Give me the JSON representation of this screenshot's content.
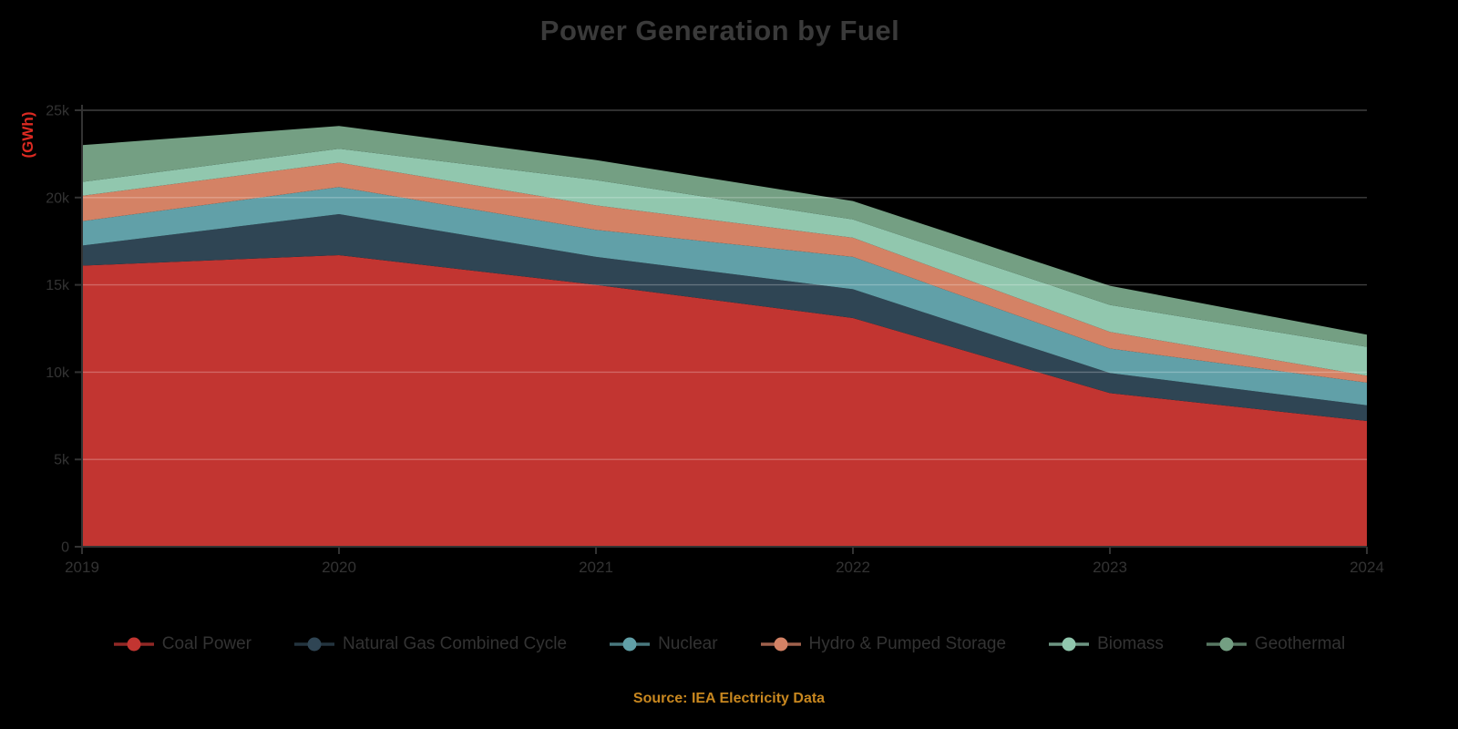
{
  "title": "Power Generation by Fuel",
  "y_axis": {
    "name": "(GWh)",
    "tick_labels": [
      "0",
      "5k",
      "10k",
      "15k",
      "20k",
      "25k"
    ]
  },
  "footer": {
    "source_caption": "Source: IEA Electricity Data"
  },
  "colors": {
    "background": "#000000",
    "title_text": "#3a3a3a",
    "axis_text": "#333333",
    "axis_line": "#333333",
    "y_axis_name": "#dc2a22",
    "caption": "#c8871f",
    "gridline": "rgba(255,255,255,0.25)"
  },
  "chart_data": {
    "type": "area",
    "stacked": true,
    "title": "Power Generation by Fuel",
    "xlabel": "",
    "ylabel": "(GWh)",
    "x": [
      "2019",
      "2020",
      "2021",
      "2022",
      "2023",
      "2024"
    ],
    "ylim": [
      0,
      25000
    ],
    "ytick_step": 5000,
    "grid": true,
    "legend_position": "bottom",
    "series": [
      {
        "name": "Coal Power",
        "color": "#c23531",
        "values": [
          16100,
          16700,
          15000,
          13100,
          8800,
          7200
        ]
      },
      {
        "name": "Natural Gas Combined Cycle",
        "color": "#2f4554",
        "values": [
          1150,
          2350,
          1600,
          1650,
          1150,
          900
        ]
      },
      {
        "name": "Nuclear",
        "color": "#61a0a8",
        "values": [
          1400,
          1550,
          1550,
          1850,
          1400,
          1300
        ]
      },
      {
        "name": "Hydro & Pumped Storage",
        "color": "#d48265",
        "values": [
          1450,
          1400,
          1400,
          1100,
          950,
          400
        ]
      },
      {
        "name": "Biomass",
        "color": "#91c7ae",
        "values": [
          800,
          800,
          1450,
          1050,
          1550,
          1650
        ]
      },
      {
        "name": "Geothermal",
        "color": "#749f83",
        "values": [
          2100,
          1300,
          1150,
          1050,
          1100,
          700
        ]
      }
    ]
  }
}
